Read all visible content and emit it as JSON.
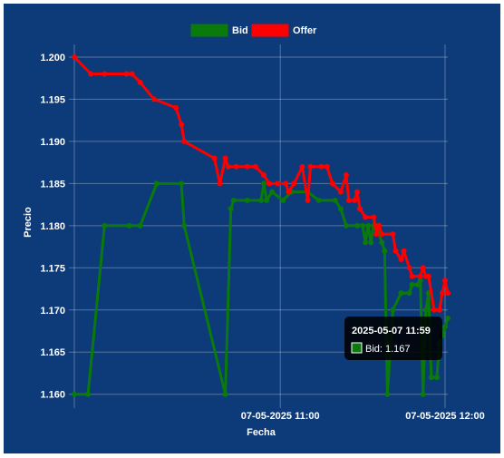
{
  "chart_data": {
    "type": "line",
    "xlabel": "Fecha",
    "ylabel": "Precio",
    "x_tick_labels": [
      "07-05-2025 11:00",
      "07-05-2025 12:00"
    ],
    "y_ticks": [
      "1.160",
      "1.165",
      "1.170",
      "1.175",
      "1.180",
      "1.185",
      "1.190",
      "1.195",
      "1.200"
    ],
    "ylim": [
      1.159,
      1.2015
    ],
    "xlim": [
      "07-05-2025 09:45",
      "07-05-2025 12:01"
    ],
    "legend_position": "top-center",
    "grid": true,
    "series": [
      {
        "name": "Bid",
        "color": "#0a7a0a",
        "points": [
          [
            "07-05-2025 09:45",
            1.16
          ],
          [
            "07-05-2025 09:50",
            1.16
          ],
          [
            "07-05-2025 09:56",
            1.18
          ],
          [
            "07-05-2025 10:05",
            1.18
          ],
          [
            "07-05-2025 10:09",
            1.18
          ],
          [
            "07-05-2025 10:15",
            1.185
          ],
          [
            "07-05-2025 10:24",
            1.185
          ],
          [
            "07-05-2025 10:25",
            1.18
          ],
          [
            "07-05-2025 10:40",
            1.16
          ],
          [
            "07-05-2025 10:42",
            1.182
          ],
          [
            "07-05-2025 10:43",
            1.183
          ],
          [
            "07-05-2025 10:48",
            1.183
          ],
          [
            "07-05-2025 10:53",
            1.183
          ],
          [
            "07-05-2025 10:54",
            1.185
          ],
          [
            "07-05-2025 10:55",
            1.183
          ],
          [
            "07-05-2025 10:57",
            1.184
          ],
          [
            "07-05-2025 11:01",
            1.183
          ],
          [
            "07-05-2025 11:04",
            1.184
          ],
          [
            "07-05-2025 11:10",
            1.184
          ],
          [
            "07-05-2025 11:14",
            1.183
          ],
          [
            "07-05-2025 11:20",
            1.183
          ],
          [
            "07-05-2025 11:22",
            1.182
          ],
          [
            "07-05-2025 11:24",
            1.18
          ],
          [
            "07-05-2025 11:28",
            1.18
          ],
          [
            "07-05-2025 11:30",
            1.18
          ],
          [
            "07-05-2025 11:31",
            1.178
          ],
          [
            "07-05-2025 11:32",
            1.18
          ],
          [
            "07-05-2025 11:33",
            1.178
          ],
          [
            "07-05-2025 11:34",
            1.18
          ],
          [
            "07-05-2025 11:35",
            1.18
          ],
          [
            "07-05-2025 11:37",
            1.178
          ],
          [
            "07-05-2025 11:38",
            1.177
          ],
          [
            "07-05-2025 11:39",
            1.16
          ],
          [
            "07-05-2025 11:41",
            1.17
          ],
          [
            "07-05-2025 11:44",
            1.172
          ],
          [
            "07-05-2025 11:47",
            1.172
          ],
          [
            "07-05-2025 11:48",
            1.173
          ],
          [
            "07-05-2025 11:50",
            1.173
          ],
          [
            "07-05-2025 11:51",
            1.1735
          ],
          [
            "07-05-2025 11:52",
            1.16
          ],
          [
            "07-05-2025 11:53",
            1.17
          ],
          [
            "07-05-2025 11:54",
            1.172
          ],
          [
            "07-05-2025 11:55",
            1.162
          ],
          [
            "07-05-2025 11:57",
            1.162
          ],
          [
            "07-05-2025 11:58",
            1.166
          ],
          [
            "07-05-2025 11:59",
            1.167
          ],
          [
            "07-05-2025 12:00",
            1.168
          ],
          [
            "07-05-2025 12:01",
            1.169
          ]
        ]
      },
      {
        "name": "Offer",
        "color": "#ff0000",
        "points": [
          [
            "07-05-2025 09:45",
            1.2
          ],
          [
            "07-05-2025 09:51",
            1.198
          ],
          [
            "07-05-2025 09:56",
            1.198
          ],
          [
            "07-05-2025 10:04",
            1.198
          ],
          [
            "07-05-2025 10:06",
            1.198
          ],
          [
            "07-05-2025 10:09",
            1.197
          ],
          [
            "07-05-2025 10:14",
            1.195
          ],
          [
            "07-05-2025 10:22",
            1.194
          ],
          [
            "07-05-2025 10:24",
            1.192
          ],
          [
            "07-05-2025 10:25",
            1.19
          ],
          [
            "07-05-2025 10:36",
            1.188
          ],
          [
            "07-05-2025 10:38",
            1.185
          ],
          [
            "07-05-2025 10:40",
            1.188
          ],
          [
            "07-05-2025 10:41",
            1.187
          ],
          [
            "07-05-2025 10:44",
            1.187
          ],
          [
            "07-05-2025 10:48",
            1.187
          ],
          [
            "07-05-2025 10:51",
            1.187
          ],
          [
            "07-05-2025 10:54",
            1.186
          ],
          [
            "07-05-2025 10:56",
            1.185
          ],
          [
            "07-05-2025 10:59",
            1.185
          ],
          [
            "07-05-2025 11:02",
            1.185
          ],
          [
            "07-05-2025 11:03",
            1.184
          ],
          [
            "07-05-2025 11:05",
            1.185
          ],
          [
            "07-05-2025 11:08",
            1.187
          ],
          [
            "07-05-2025 11:10",
            1.183
          ],
          [
            "07-05-2025 11:11",
            1.187
          ],
          [
            "07-05-2025 11:15",
            1.187
          ],
          [
            "07-05-2025 11:17",
            1.187
          ],
          [
            "07-05-2025 11:19",
            1.185
          ],
          [
            "07-05-2025 11:22",
            1.184
          ],
          [
            "07-05-2025 11:24",
            1.186
          ],
          [
            "07-05-2025 11:25",
            1.183
          ],
          [
            "07-05-2025 11:27",
            1.183
          ],
          [
            "07-05-2025 11:28",
            1.184
          ],
          [
            "07-05-2025 11:29",
            1.182
          ],
          [
            "07-05-2025 11:31",
            1.181
          ],
          [
            "07-05-2025 11:34",
            1.181
          ],
          [
            "07-05-2025 11:35",
            1.179
          ],
          [
            "07-05-2025 11:36",
            1.18
          ],
          [
            "07-05-2025 11:37",
            1.179
          ],
          [
            "07-05-2025 11:41",
            1.179
          ],
          [
            "07-05-2025 11:42",
            1.177
          ],
          [
            "07-05-2025 11:44",
            1.176
          ],
          [
            "07-05-2025 11:45",
            1.177
          ],
          [
            "07-05-2025 11:47",
            1.175
          ],
          [
            "07-05-2025 11:48",
            1.174
          ],
          [
            "07-05-2025 11:51",
            1.174
          ],
          [
            "07-05-2025 11:52",
            1.175
          ],
          [
            "07-05-2025 11:53",
            1.174
          ],
          [
            "07-05-2025 11:54",
            1.174
          ],
          [
            "07-05-2025 11:56",
            1.17
          ],
          [
            "07-05-2025 11:58",
            1.17
          ],
          [
            "07-05-2025 11:59",
            1.172
          ],
          [
            "07-05-2025 12:00",
            1.1735
          ],
          [
            "07-05-2025 12:01",
            1.172
          ]
        ]
      }
    ]
  },
  "tooltip": {
    "title": "2025-05-07 11:59",
    "label": "Bid: 1.167",
    "series": "Bid",
    "color": "#0a7a0a",
    "x": "07-05-2025 11:59",
    "y": 1.167
  }
}
